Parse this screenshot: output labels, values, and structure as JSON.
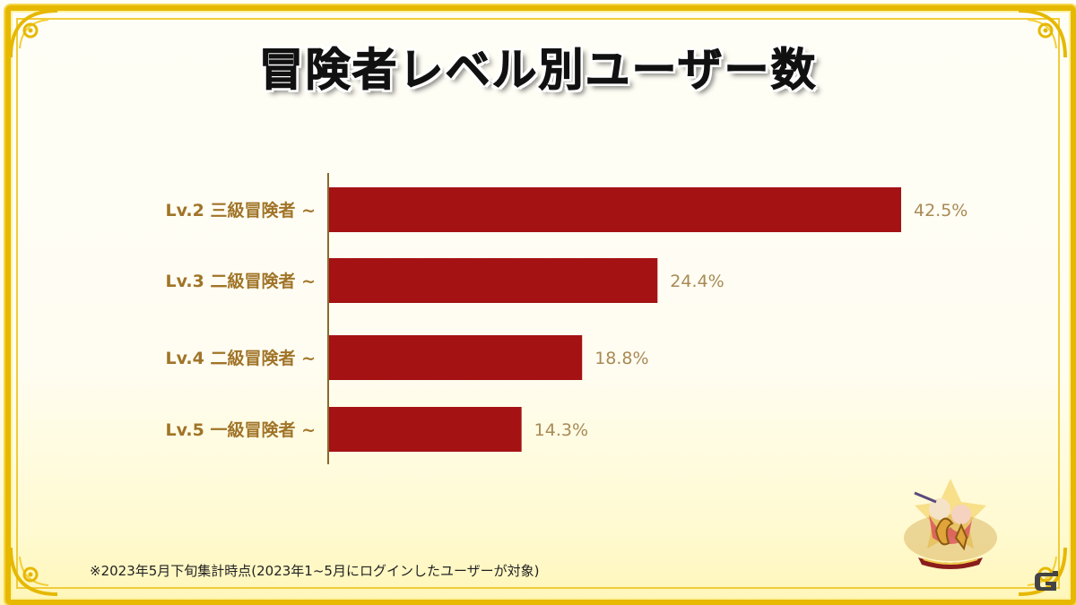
{
  "title": "冒険者レベル別ユーザー数",
  "footnote": "※2023年5月下旬集計時点(2023年1~5月にログインしたユーザーが対象)",
  "colors": {
    "bar": "#a41214",
    "category_label": "#a07428",
    "value_label": "#a88a55",
    "axis": "#8a6a2c",
    "gold": "#e6b800"
  },
  "chart_data": {
    "type": "bar",
    "orientation": "horizontal",
    "categories": [
      "Lv.2 三級冒険者 ~",
      "Lv.3 二級冒険者 ~",
      "Lv.4 二級冒険者 ~",
      "Lv.5 一級冒険者 ~"
    ],
    "values": [
      42.5,
      24.4,
      18.8,
      14.3
    ],
    "value_labels": [
      "42.5%",
      "24.4%",
      "18.8%",
      "14.3%"
    ],
    "xlim": [
      0,
      42.5
    ],
    "grid": false,
    "legend": "none"
  },
  "icons": {
    "anniversary_logo": "6th-anniversary-logo",
    "site_mark": "g-logo"
  }
}
